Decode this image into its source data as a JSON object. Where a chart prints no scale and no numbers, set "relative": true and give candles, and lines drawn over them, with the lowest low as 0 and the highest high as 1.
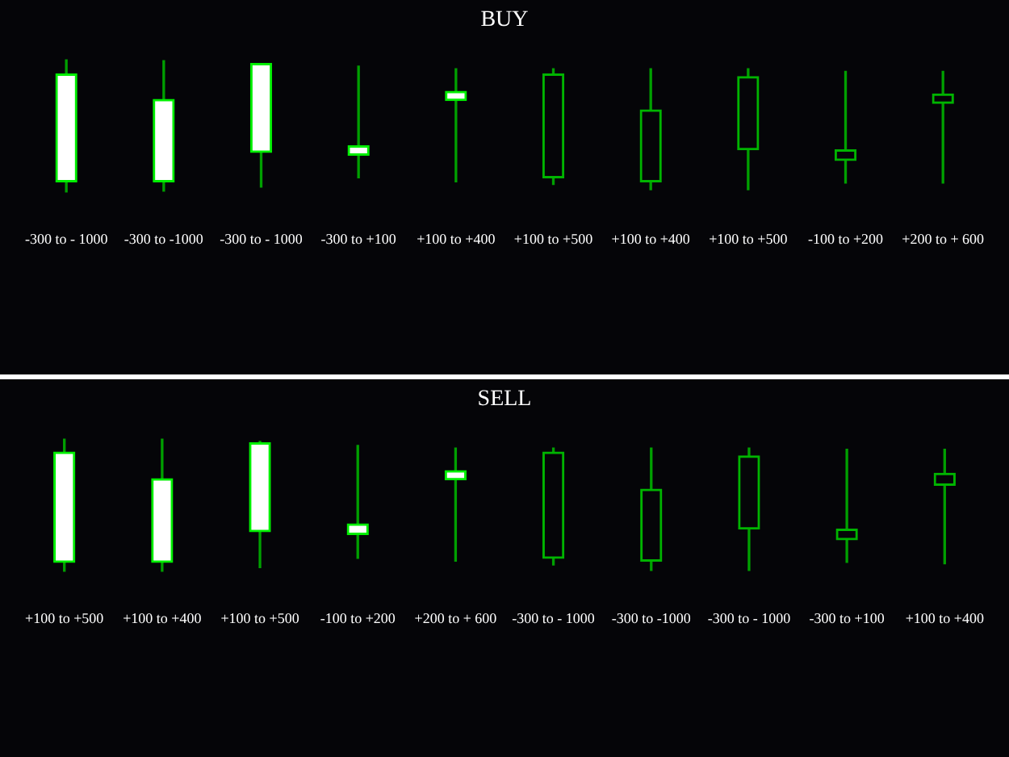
{
  "chart_data": [
    {
      "type": "candlestick",
      "title": "BUY",
      "relative": true,
      "categories": [
        "-300 to - 1000",
        "-300 to -1000",
        "-300 to - 1000",
        "-300 to +100",
        "+100 to +400",
        "+100 to +500",
        "+100 to +400",
        "+100 to +500",
        "-100 to +200",
        "+200 to + 600"
      ],
      "color": "#00a000",
      "colors": [
        "#00ee00",
        "#00ee00",
        "#00ee00",
        "#00ee00",
        "#00ee00",
        "#00b400",
        "#00b400",
        "#00b400",
        "#00b400",
        "#00b400"
      ],
      "ohlc": [
        [
          0.08,
          1.0,
          0.0,
          0.89
        ],
        [
          0.08,
          0.99,
          0.01,
          0.7
        ],
        [
          0.3,
          0.97,
          0.04,
          0.97
        ],
        [
          0.28,
          0.95,
          0.11,
          0.35
        ],
        [
          0.69,
          0.93,
          0.08,
          0.76
        ],
        [
          0.89,
          0.93,
          0.06,
          0.11
        ],
        [
          0.62,
          0.93,
          0.02,
          0.08
        ],
        [
          0.87,
          0.93,
          0.02,
          0.32
        ],
        [
          0.32,
          0.91,
          0.07,
          0.24
        ],
        [
          0.74,
          0.91,
          0.07,
          0.67
        ]
      ]
    },
    {
      "type": "candlestick",
      "title": "SELL",
      "relative": true,
      "categories": [
        "+100 to +500",
        "+100 to +400",
        "+100 to +500",
        "-100 to +200",
        "+200 to + 600",
        "-300 to - 1000",
        "-300 to -1000",
        "-300 to - 1000",
        "-300 to +100",
        "+100 to +400"
      ],
      "color": "#00a000",
      "colors": [
        "#00ee00",
        "#00ee00",
        "#00ee00",
        "#00ee00",
        "#00ee00",
        "#00b400",
        "#00b400",
        "#00b400",
        "#00b400",
        "#00b400"
      ],
      "ohlc": [
        [
          0.07,
          1.0,
          0.0,
          0.9
        ],
        [
          0.07,
          1.0,
          0.0,
          0.7
        ],
        [
          0.3,
          0.98,
          0.03,
          0.97
        ],
        [
          0.28,
          0.95,
          0.1,
          0.36
        ],
        [
          0.69,
          0.93,
          0.08,
          0.76
        ],
        [
          0.9,
          0.93,
          0.05,
          0.1
        ],
        [
          0.62,
          0.93,
          0.01,
          0.08
        ],
        [
          0.87,
          0.93,
          0.01,
          0.32
        ],
        [
          0.32,
          0.92,
          0.07,
          0.24
        ],
        [
          0.74,
          0.92,
          0.06,
          0.65
        ]
      ]
    }
  ]
}
